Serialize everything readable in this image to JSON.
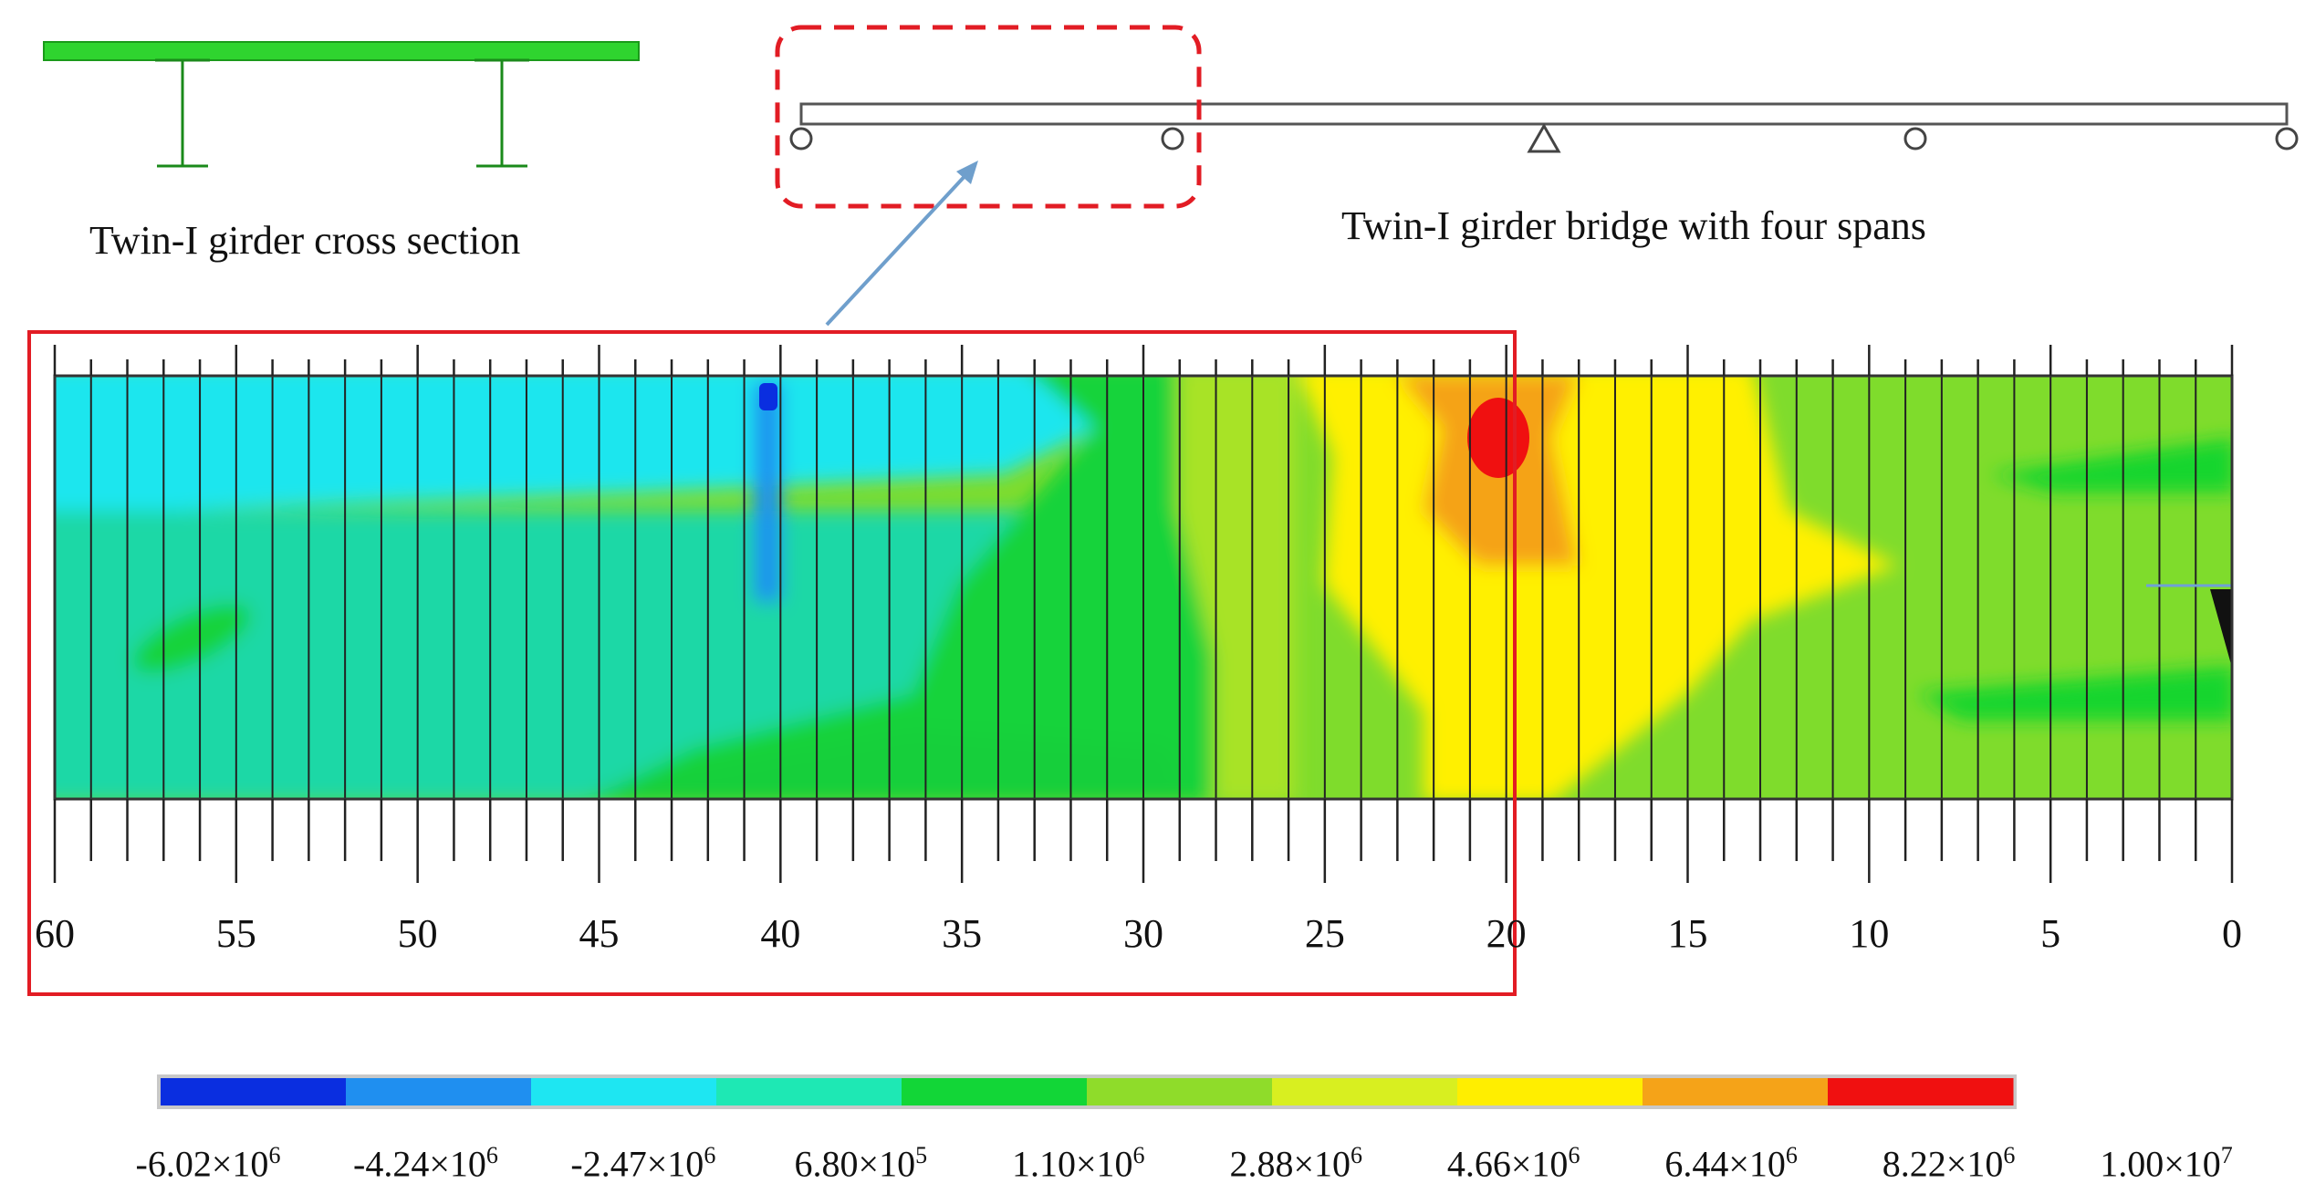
{
  "captions": {
    "cross_section": "Twin-I girder cross section",
    "bridge": "Twin-I girder bridge with four spans"
  },
  "axis": {
    "tick_labels": [
      "60",
      "55",
      "50",
      "45",
      "40",
      "35",
      "30",
      "25",
      "20",
      "15",
      "10",
      "5",
      "0"
    ],
    "range": [
      60,
      0
    ]
  },
  "colorbar": {
    "colors": [
      "#0a2ee0",
      "#1f8ff0",
      "#1ee6f2",
      "#1ee8b4",
      "#12d637",
      "#8fdc2a",
      "#d8ef20",
      "#ffee00",
      "#f5a318",
      "#f01010"
    ],
    "labels": [
      {
        "mantissa": "-6.02",
        "times": "×",
        "base": "10",
        "exp": "6"
      },
      {
        "mantissa": "-4.24",
        "times": "×",
        "base": "10",
        "exp": "6"
      },
      {
        "mantissa": "-2.47",
        "times": "×",
        "base": "10",
        "exp": "6"
      },
      {
        "mantissa": "6.80",
        "times": "×",
        "base": "10",
        "exp": "5"
      },
      {
        "mantissa": "1.10",
        "times": "×",
        "base": "10",
        "exp": "6"
      },
      {
        "mantissa": "2.88",
        "times": "×",
        "base": "10",
        "exp": "6"
      },
      {
        "mantissa": "4.66",
        "times": "×",
        "base": "10",
        "exp": "6"
      },
      {
        "mantissa": "6.44",
        "times": "×",
        "base": "10",
        "exp": "6"
      },
      {
        "mantissa": "8.22",
        "times": "×",
        "base": "10",
        "exp": "6"
      },
      {
        "mantissa": "1.00",
        "times": "×",
        "base": "10",
        "exp": "7"
      }
    ]
  },
  "highlight_colors": {
    "callout": "#e21c24",
    "arrow": "#6f9fcc",
    "girder": "#2fd42f"
  }
}
